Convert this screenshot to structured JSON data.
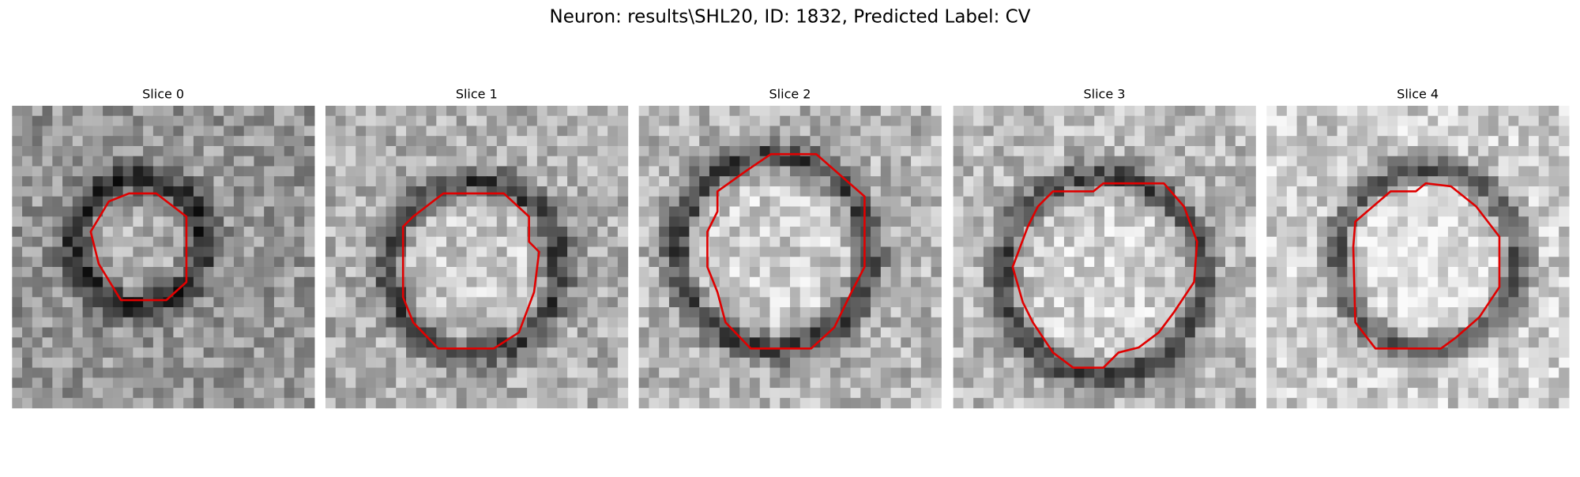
{
  "figure": {
    "title": "Neuron: results\\SHL20, ID: 1832, Predicted Label: CV",
    "panels": [
      {
        "title": "Slice 0"
      },
      {
        "title": "Slice 1"
      },
      {
        "title": "Slice 2"
      },
      {
        "title": "Slice 3"
      },
      {
        "title": "Slice 4"
      }
    ]
  }
}
